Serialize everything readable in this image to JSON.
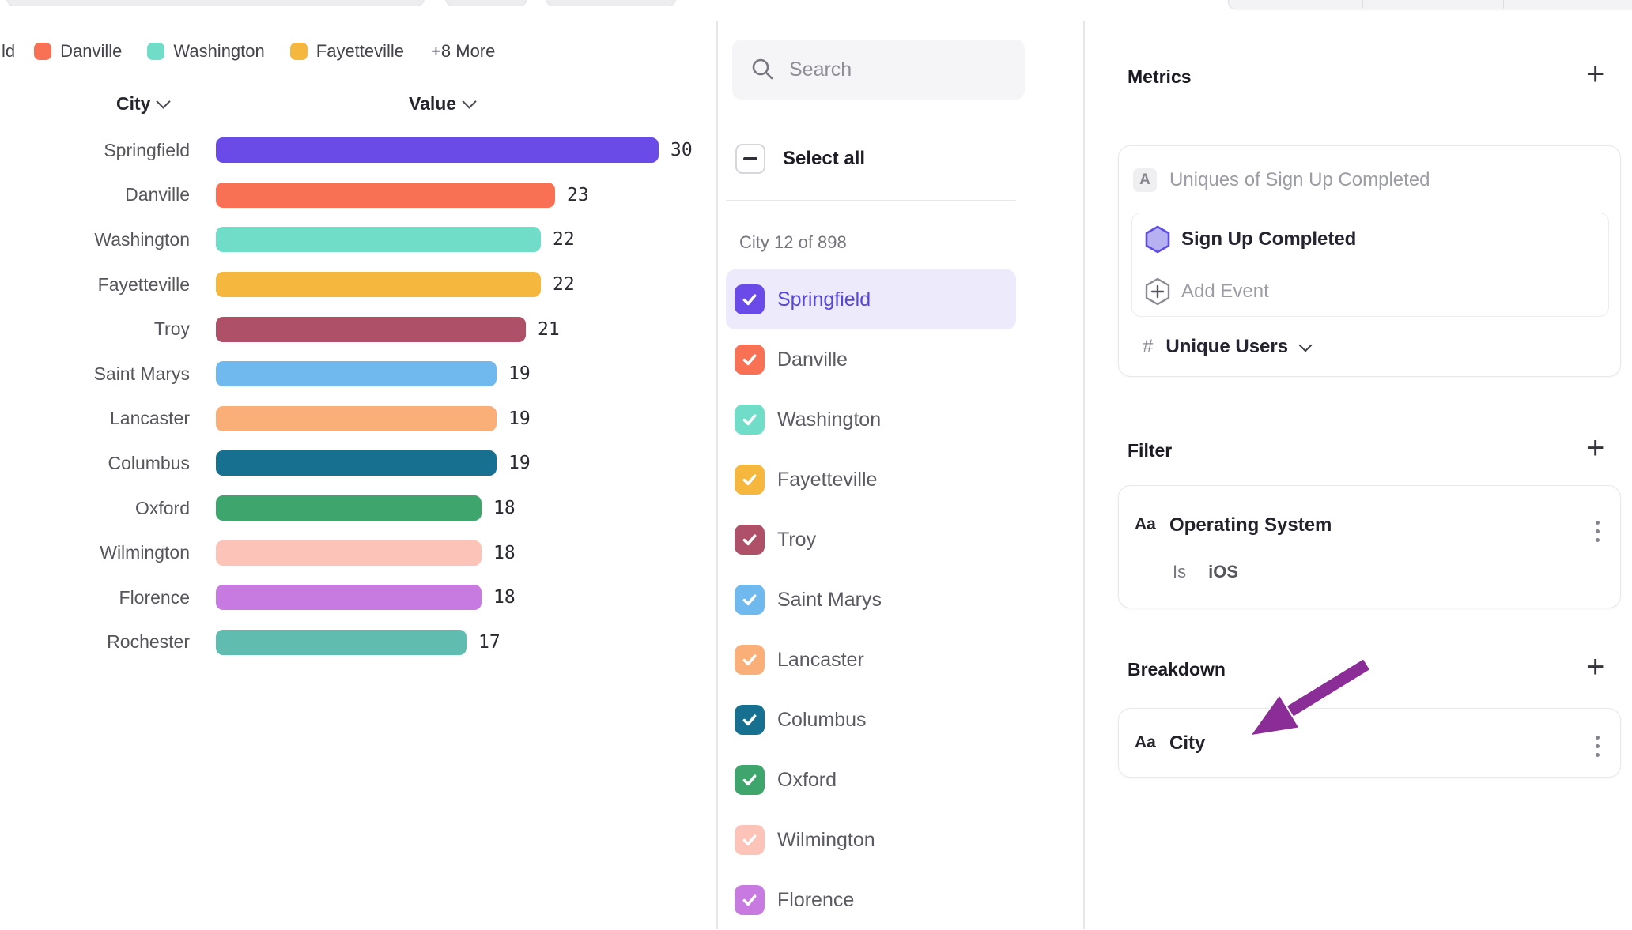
{
  "chart_data": {
    "type": "bar",
    "orientation": "horizontal",
    "title": "",
    "xlabel": "Value",
    "ylabel": "City",
    "xlim": [
      0,
      30
    ],
    "grid": false,
    "categories": [
      "Springfield",
      "Danville",
      "Washington",
      "Fayetteville",
      "Troy",
      "Saint Marys",
      "Lancaster",
      "Columbus",
      "Oxford",
      "Wilmington",
      "Florence",
      "Rochester"
    ],
    "values": [
      30,
      23,
      22,
      22,
      21,
      19,
      19,
      19,
      18,
      18,
      18,
      17
    ],
    "bar_colors": [
      "#6A4BE8",
      "#F97155",
      "#6FDDC8",
      "#F5B73E",
      "#AE5168",
      "#70B9EE",
      "#FAAF78",
      "#17708F",
      "#3EA56C",
      "#FCC3B8",
      "#C77ADF",
      "#5FBCAE"
    ],
    "column_headers": {
      "category": "City",
      "value": "Value"
    },
    "legend": {
      "position": "top",
      "truncated_item": "ld",
      "items": [
        {
          "label": "Danville",
          "color": "#F97155"
        },
        {
          "label": "Washington",
          "color": "#6FDDC8"
        },
        {
          "label": "Fayetteville",
          "color": "#F5B73E"
        }
      ],
      "more_label": "+8 More"
    }
  },
  "selector_panel": {
    "search_placeholder": "Search",
    "select_all_label": "Select all",
    "count_label": "City 12 of 898",
    "options": [
      {
        "label": "Springfield",
        "color": "#6A4BE8",
        "checked": true,
        "highlighted": true
      },
      {
        "label": "Danville",
        "color": "#F97155",
        "checked": true,
        "highlighted": false
      },
      {
        "label": "Washington",
        "color": "#6FDDC8",
        "checked": true,
        "highlighted": false
      },
      {
        "label": "Fayetteville",
        "color": "#F5B73E",
        "checked": true,
        "highlighted": false
      },
      {
        "label": "Troy",
        "color": "#AE5168",
        "checked": true,
        "highlighted": false
      },
      {
        "label": "Saint Marys",
        "color": "#70B9EE",
        "checked": true,
        "highlighted": false
      },
      {
        "label": "Lancaster",
        "color": "#FAAF78",
        "checked": true,
        "highlighted": false
      },
      {
        "label": "Columbus",
        "color": "#17708F",
        "checked": true,
        "highlighted": false
      },
      {
        "label": "Oxford",
        "color": "#3EA56C",
        "checked": true,
        "highlighted": false
      },
      {
        "label": "Wilmington",
        "color": "#FCC3B8",
        "checked": true,
        "highlighted": false
      },
      {
        "label": "Florence",
        "color": "#C77ADF",
        "checked": true,
        "highlighted": false
      }
    ]
  },
  "inspector": {
    "metrics": {
      "heading": "Metrics",
      "metric_letter": "A",
      "metric_label": "Uniques of Sign Up Completed",
      "event_name": "Sign Up Completed",
      "add_event_label": "Add Event",
      "measure_symbol": "#",
      "measure_label": "Unique Users"
    },
    "filter": {
      "heading": "Filter",
      "property_type_icon": "Aa",
      "property": "Operating System",
      "operator": "Is",
      "value": "iOS"
    },
    "breakdown": {
      "heading": "Breakdown",
      "property_type_icon": "Aa",
      "property": "City"
    }
  },
  "colors": {
    "accent_purple": "#6A4BE8",
    "selected_row_bg": "#EDEBFB",
    "selected_text": "#5546DE",
    "property_icon_green": "#3BA571",
    "annotation_arrow": "#8B2D97"
  }
}
